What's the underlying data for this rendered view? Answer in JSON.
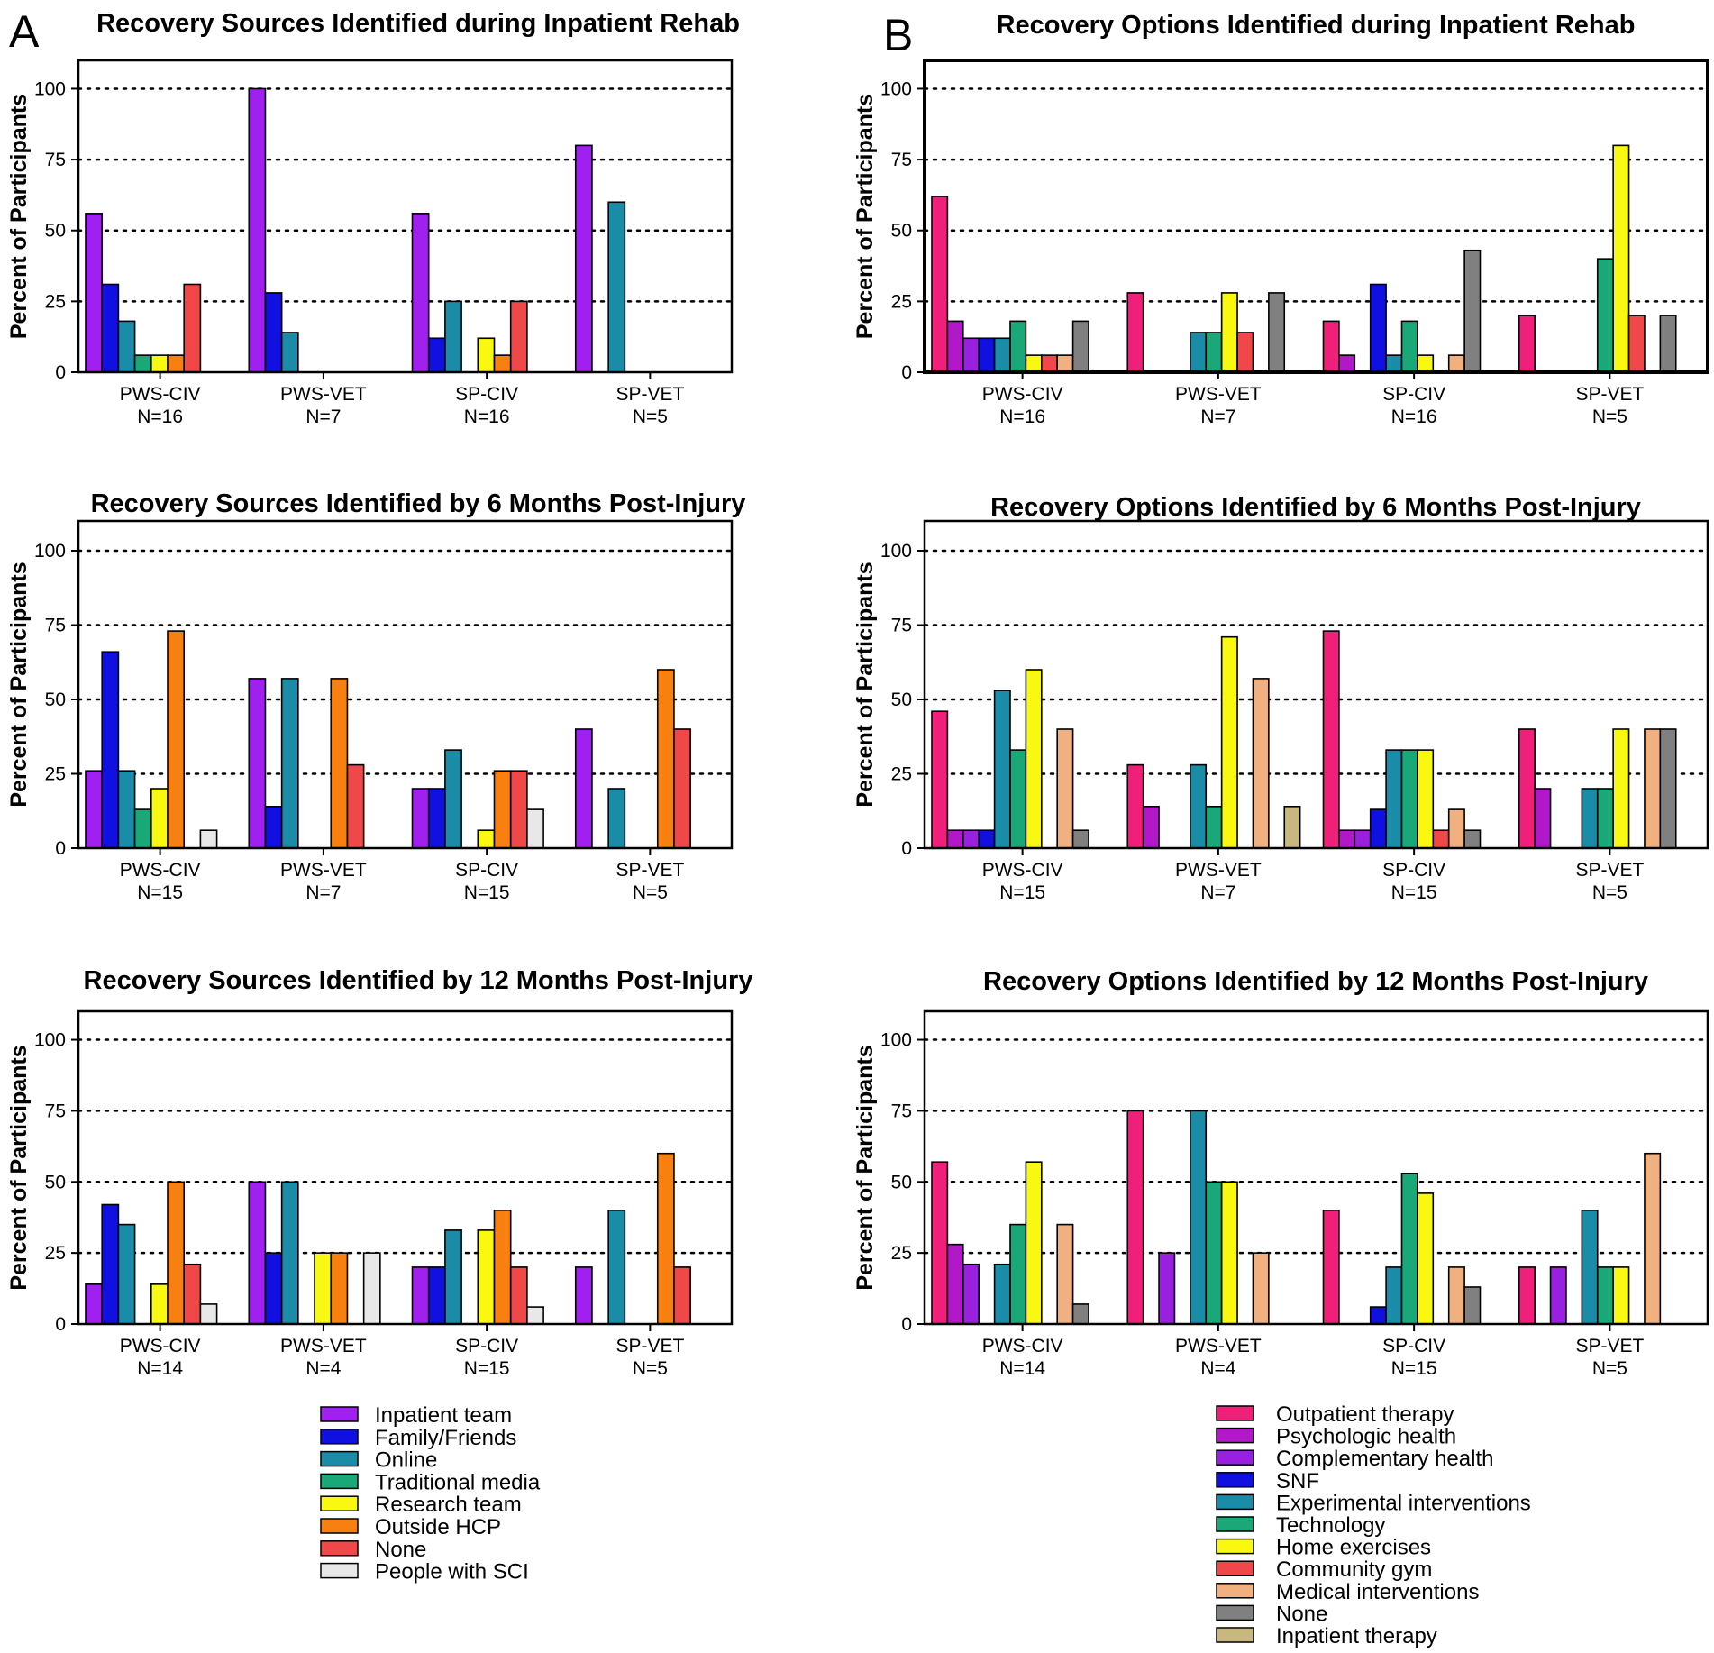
{
  "panel_letters": [
    "A",
    "B"
  ],
  "legends": {
    "sources": {
      "entries": [
        "Inpatient team",
        "Family/Friends",
        "Online",
        "Traditional media",
        "Research team",
        "Outside HCP",
        "None",
        "People with SCI"
      ],
      "colors": [
        "#a020f0",
        "#1010e0",
        "#1a8ca8",
        "#1aa878",
        "#f8f810",
        "#f88010",
        "#f04848",
        "#e8e8e8"
      ]
    },
    "options": {
      "entries": [
        "Outpatient therapy",
        "Psychologic health",
        "Complementary health",
        "SNF",
        "Experimental interventions",
        "Technology",
        "Home exercises",
        "Community gym",
        "Medical interventions",
        "None",
        "Inpatient therapy"
      ],
      "colors": [
        "#f0207a",
        "#b018c8",
        "#9a20e0",
        "#1010e0",
        "#1a8ca8",
        "#1aa878",
        "#f8f810",
        "#f04848",
        "#f0b080",
        "#808080",
        "#c8b880"
      ]
    }
  },
  "chart_data": [
    {
      "type": "bar",
      "panel": "A",
      "legend": "sources",
      "title": "Recovery Sources Identified during Inpatient Rehab",
      "ylabel": "Percent of Participants",
      "ylim": [
        0,
        110
      ],
      "yticks": [
        "0",
        "25",
        "50",
        "75",
        "100"
      ],
      "grid_values": [
        25,
        50,
        75,
        100
      ],
      "categories": [
        "PWS-CIV",
        "PWS-VET",
        "SP-CIV",
        "SP-VET"
      ],
      "n_labels": [
        "N=16",
        "N=7",
        "N=16",
        "N=5"
      ],
      "values": [
        [
          56,
          31,
          18,
          6,
          6,
          6,
          31,
          0
        ],
        [
          100,
          28,
          14,
          0,
          0,
          0,
          0,
          0
        ],
        [
          56,
          12,
          25,
          0,
          12,
          6,
          25,
          0
        ],
        [
          80,
          0,
          60,
          0,
          0,
          0,
          0,
          0
        ]
      ]
    },
    {
      "type": "bar",
      "panel": "B",
      "legend": "options",
      "title": "Recovery Options Identified during Inpatient Rehab",
      "ylabel": "Percent of Participants",
      "ylim": [
        0,
        110
      ],
      "yticks": [
        "0",
        "25",
        "50",
        "75",
        "100"
      ],
      "grid_values": [
        25,
        50,
        75,
        100
      ],
      "categories": [
        "PWS-CIV",
        "PWS-VET",
        "SP-CIV",
        "SP-VET"
      ],
      "n_labels": [
        "N=16",
        "N=7",
        "N=16",
        "N=5"
      ],
      "values": [
        [
          62,
          18,
          12,
          12,
          12,
          18,
          6,
          6,
          6,
          18,
          0
        ],
        [
          28,
          0,
          0,
          0,
          14,
          14,
          28,
          14,
          0,
          28,
          0
        ],
        [
          18,
          6,
          0,
          31,
          6,
          18,
          6,
          0,
          6,
          43,
          0
        ],
        [
          20,
          0,
          0,
          0,
          0,
          40,
          80,
          20,
          0,
          20,
          0
        ]
      ]
    },
    {
      "type": "bar",
      "panel": "",
      "legend": "sources",
      "title": "Recovery Sources Identified by 6 Months Post-Injury",
      "ylabel": "Percent of Participants",
      "ylim": [
        0,
        110
      ],
      "yticks": [
        "0",
        "25",
        "50",
        "75",
        "100"
      ],
      "grid_values": [
        25,
        50,
        75,
        100
      ],
      "categories": [
        "PWS-CIV",
        "PWS-VET",
        "SP-CIV",
        "SP-VET"
      ],
      "n_labels": [
        "N=15",
        "N=7",
        "N=15",
        "N=5"
      ],
      "values": [
        [
          26,
          66,
          26,
          13,
          20,
          73,
          0,
          6
        ],
        [
          57,
          14,
          57,
          0,
          0,
          57,
          28,
          0
        ],
        [
          20,
          20,
          33,
          0,
          6,
          26,
          26,
          13
        ],
        [
          40,
          0,
          20,
          0,
          0,
          60,
          40,
          0
        ]
      ]
    },
    {
      "type": "bar",
      "panel": "",
      "legend": "options",
      "title": "Recovery Options Identified by 6 Months Post-Injury",
      "ylabel": "Percent of Participants",
      "ylim": [
        0,
        110
      ],
      "yticks": [
        "0",
        "25",
        "50",
        "75",
        "100"
      ],
      "grid_values": [
        25,
        50,
        75,
        100
      ],
      "categories": [
        "PWS-CIV",
        "PWS-VET",
        "SP-CIV",
        "SP-VET"
      ],
      "n_labels": [
        "N=15",
        "N=7",
        "N=15",
        "N=5"
      ],
      "values": [
        [
          46,
          6,
          6,
          6,
          53,
          33,
          60,
          0,
          40,
          6,
          0
        ],
        [
          28,
          14,
          0,
          0,
          28,
          14,
          71,
          0,
          57,
          0,
          14
        ],
        [
          73,
          6,
          6,
          13,
          33,
          33,
          33,
          6,
          13,
          6,
          0
        ],
        [
          40,
          20,
          0,
          0,
          20,
          20,
          40,
          0,
          40,
          40,
          0
        ]
      ]
    },
    {
      "type": "bar",
      "panel": "",
      "legend": "sources",
      "title": "Recovery Sources Identified by 12 Months Post-Injury",
      "ylabel": "Percent of Participants",
      "ylim": [
        0,
        110
      ],
      "yticks": [
        "0",
        "25",
        "50",
        "75",
        "100"
      ],
      "grid_values": [
        25,
        50,
        75,
        100
      ],
      "categories": [
        "PWS-CIV",
        "PWS-VET",
        "SP-CIV",
        "SP-VET"
      ],
      "n_labels": [
        "N=14",
        "N=4",
        "N=15",
        "N=5"
      ],
      "values": [
        [
          14,
          42,
          35,
          0,
          14,
          50,
          21,
          7
        ],
        [
          50,
          25,
          50,
          0,
          25,
          25,
          0,
          25
        ],
        [
          20,
          20,
          33,
          0,
          33,
          40,
          20,
          6
        ],
        [
          20,
          0,
          40,
          0,
          0,
          60,
          20,
          0
        ]
      ]
    },
    {
      "type": "bar",
      "panel": "",
      "legend": "options",
      "title": "Recovery Options Identified by 12 Months Post-Injury",
      "ylabel": "Percent of Participants",
      "ylim": [
        0,
        110
      ],
      "yticks": [
        "0",
        "25",
        "50",
        "75",
        "100"
      ],
      "grid_values": [
        25,
        50,
        75,
        100
      ],
      "categories": [
        "PWS-CIV",
        "PWS-VET",
        "SP-CIV",
        "SP-VET"
      ],
      "n_labels": [
        "N=14",
        "N=4",
        "N=15",
        "N=5"
      ],
      "values": [
        [
          57,
          28,
          21,
          0,
          21,
          35,
          57,
          0,
          35,
          7,
          0
        ],
        [
          75,
          0,
          25,
          0,
          75,
          50,
          50,
          0,
          25,
          0,
          0
        ],
        [
          40,
          0,
          0,
          6,
          20,
          53,
          46,
          0,
          20,
          13,
          0
        ],
        [
          20,
          0,
          20,
          0,
          40,
          20,
          20,
          0,
          60,
          0,
          0
        ]
      ]
    }
  ]
}
